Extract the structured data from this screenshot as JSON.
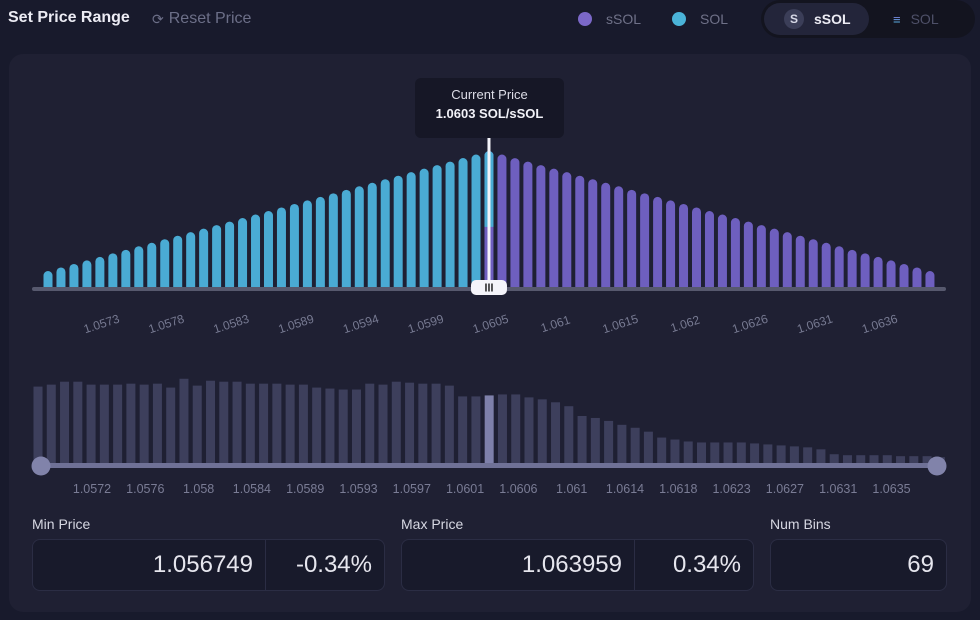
{
  "header": {
    "title": "Set Price Range",
    "reset_label": "Reset Price",
    "legend": [
      {
        "label": "sSOL",
        "color": "#7b68c8"
      },
      {
        "label": "SOL",
        "color": "#4ab3d8"
      }
    ],
    "token_toggle": [
      {
        "label": "sSOL",
        "icon": "ssol-token-icon",
        "active": true
      },
      {
        "label": "SOL",
        "icon": "sol-token-icon",
        "active": false
      }
    ]
  },
  "tooltip": {
    "title": "Current Price",
    "value": "1.0603 SOL/sSOL"
  },
  "colors": {
    "sol": "#4aabd4",
    "ssol": "#6e5fbf",
    "liquidity_bar": "#3d3f5c",
    "liquidity_active": "#7e80aa"
  },
  "chart_data": [
    {
      "type": "bar",
      "title": "Price range distribution",
      "num_bins": 69,
      "current_bin_index": 34,
      "series": [
        {
          "name": "SOL",
          "bins": "0-33 (and lower part of 34)"
        },
        {
          "name": "sSOL",
          "bins": "35-68 (and upper part of 34)"
        }
      ],
      "values": [
        1,
        2,
        3,
        4,
        5,
        6,
        7,
        8,
        9,
        10,
        11,
        12,
        13,
        14,
        15,
        16,
        17,
        18,
        19,
        20,
        21,
        22,
        23,
        24,
        25,
        26,
        27,
        28,
        29,
        30,
        31,
        32,
        33,
        34,
        35,
        34,
        33,
        32,
        31,
        30,
        29,
        28,
        27,
        26,
        25,
        24,
        23,
        22,
        21,
        20,
        19,
        18,
        17,
        16,
        15,
        14,
        13,
        12,
        11,
        10,
        9,
        8,
        7,
        6,
        5,
        4,
        3,
        2,
        1
      ],
      "current_bin_split": 0.55,
      "x_tick_labels": [
        "1.0573",
        "1.0578",
        "1.0583",
        "1.0589",
        "1.0594",
        "1.0599",
        "1.0605",
        "1.061",
        "1.0615",
        "1.062",
        "1.0626",
        "1.0631",
        "1.0636"
      ],
      "x_tick_bin_indices": [
        4,
        9,
        14,
        19,
        24,
        29,
        34,
        39,
        44,
        49,
        54,
        59,
        64
      ]
    },
    {
      "type": "bar",
      "title": "Liquidity distribution",
      "values": [
        80,
        82,
        85,
        85,
        82,
        82,
        82,
        83,
        82,
        83,
        79,
        88,
        81,
        86,
        85,
        85,
        83,
        83,
        83,
        82,
        82,
        79,
        78,
        77,
        77,
        83,
        82,
        85,
        84,
        83,
        83,
        81,
        70,
        70,
        71,
        72,
        72,
        69,
        67,
        64,
        60,
        50,
        48,
        45,
        41,
        38,
        34,
        28,
        26,
        24,
        23,
        23,
        23,
        23,
        22,
        21,
        20,
        19,
        18,
        16,
        11,
        10,
        10,
        10,
        10,
        9,
        9,
        9,
        8
      ],
      "highlight_index": 34,
      "x_tick_labels": [
        "1.0572",
        "1.0576",
        "1.058",
        "1.0584",
        "1.0589",
        "1.0593",
        "1.0597",
        "1.0601",
        "1.0606",
        "1.061",
        "1.0614",
        "1.0618",
        "1.0623",
        "1.0627",
        "1.0631",
        "1.0635"
      ],
      "range_slider": {
        "min": 0,
        "max": 1
      }
    }
  ],
  "fields": {
    "min_price": {
      "label": "Min Price",
      "value": "1.056749",
      "percent": "-0.34%"
    },
    "max_price": {
      "label": "Max Price",
      "value": "1.063959",
      "percent": "0.34%"
    },
    "num_bins": {
      "label": "Num Bins",
      "value": "69"
    }
  }
}
